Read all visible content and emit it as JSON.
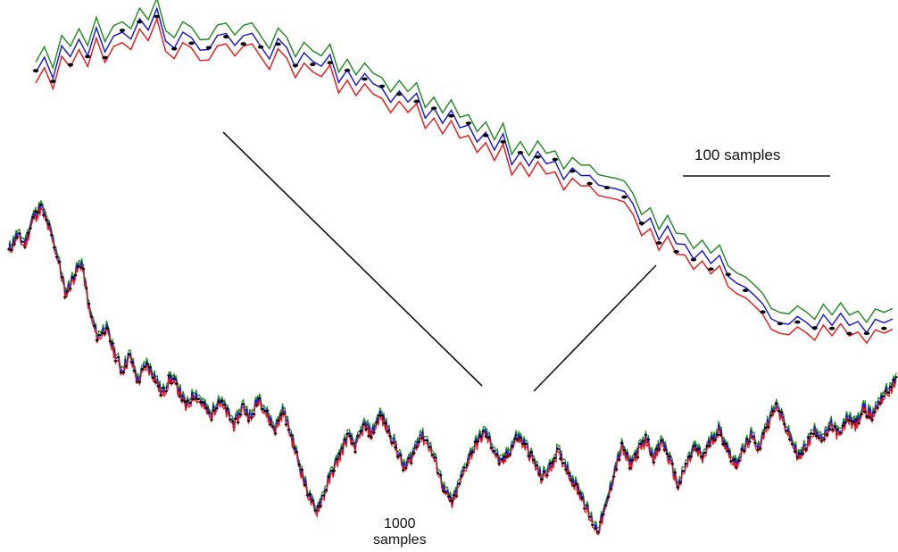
{
  "chart_data": {
    "type": "line",
    "title": "",
    "description_labels": {
      "zoom_scale_label": "100 samples",
      "overview_scale_label_line1": "1000",
      "overview_scale_label_line2": "samples"
    },
    "colors": {
      "series_green": "#1a8a1a",
      "series_blue": "#1010e0",
      "series_red": "#ee1111",
      "markers": "#000000",
      "connector": "#111111"
    },
    "panels": [
      {
        "panel": "zoomed-detail",
        "samples": 100,
        "series": [
          {
            "values": [
              0.12,
              0.18,
              0.08,
              0.22,
              0.15,
              0.28,
              0.2,
              0.3,
              0.18,
              0.25,
              0.32,
              0.26,
              0.35,
              0.3,
              0.38,
              0.28,
              0.22,
              0.3,
              0.25,
              0.18,
              0.24,
              0.3,
              0.27,
              0.2,
              0.26,
              0.31,
              0.22,
              0.17,
              0.25,
              0.19,
              0.14,
              0.21,
              0.16,
              0.1,
              0.16,
              0.08,
              0.12,
              0.04,
              0.09,
              0.01,
              0.05,
              -0.03,
              0.02,
              -0.07,
              -0.02,
              -0.11,
              -0.06,
              -0.14,
              -0.1,
              -0.19,
              -0.14,
              -0.23,
              -0.18,
              -0.28,
              -0.22,
              -0.31,
              -0.26,
              -0.35,
              -0.3,
              -0.37,
              -0.32,
              -0.4,
              -0.36,
              -0.41,
              -0.42,
              -0.43,
              -0.44,
              -0.46,
              -0.48,
              -0.55,
              -0.62,
              -0.58,
              -0.7,
              -0.66,
              -0.76,
              -0.72,
              -0.8,
              -0.77,
              -0.84,
              -0.81,
              -0.86,
              -0.89,
              -0.93,
              -0.98,
              -1.03,
              -1.06,
              -1.1,
              -1.12,
              -1.08,
              -1.14,
              -1.1,
              -1.05,
              -1.12,
              -1.07,
              -1.13,
              -1.09,
              -1.14,
              -1.1,
              -1.12,
              -1.11
            ]
          }
        ]
      },
      {
        "panel": "overview",
        "samples": 1000,
        "series": [
          {
            "values": [
              0.9,
              0.97,
              0.93,
              1.05,
              1.1,
              1.0,
              0.88,
              0.7,
              0.78,
              0.85,
              0.62,
              0.5,
              0.55,
              0.44,
              0.35,
              0.42,
              0.3,
              0.38,
              0.33,
              0.24,
              0.32,
              0.27,
              0.18,
              0.25,
              0.2,
              0.14,
              0.22,
              0.16,
              0.1,
              0.19,
              0.13,
              0.23,
              0.15,
              0.08,
              0.17,
              0.05,
              -0.08,
              -0.2,
              -0.3,
              -0.22,
              -0.12,
              -0.04,
              0.05,
              0.0,
              0.1,
              0.06,
              0.15,
              0.08,
              0.0,
              -0.1,
              -0.04,
              0.06,
              0.02,
              -0.08,
              -0.2,
              -0.26,
              -0.15,
              -0.05,
              0.02,
              0.07,
              0.0,
              -0.08,
              -0.02,
              0.05,
              0.01,
              -0.06,
              -0.14,
              -0.1,
              -0.02,
              -0.08,
              -0.16,
              -0.22,
              -0.32,
              -0.38,
              -0.28,
              -0.12,
              0.0,
              -0.08,
              -0.02,
              0.04,
              -0.05,
              0.03,
              -0.07,
              -0.18,
              -0.08,
              0.0,
              -0.05,
              0.03,
              0.08,
              0.0,
              -0.08,
              -0.02,
              0.05,
              0.0,
              0.1,
              0.2,
              0.12,
              0.03,
              -0.05,
              0.02,
              0.08,
              0.04,
              0.1,
              0.05,
              0.14,
              0.1,
              0.18,
              0.14,
              0.22,
              0.26,
              0.3
            ]
          }
        ]
      }
    ],
    "connectors": 2,
    "axes": {
      "visible": false
    },
    "grid": false,
    "legend": "none"
  }
}
